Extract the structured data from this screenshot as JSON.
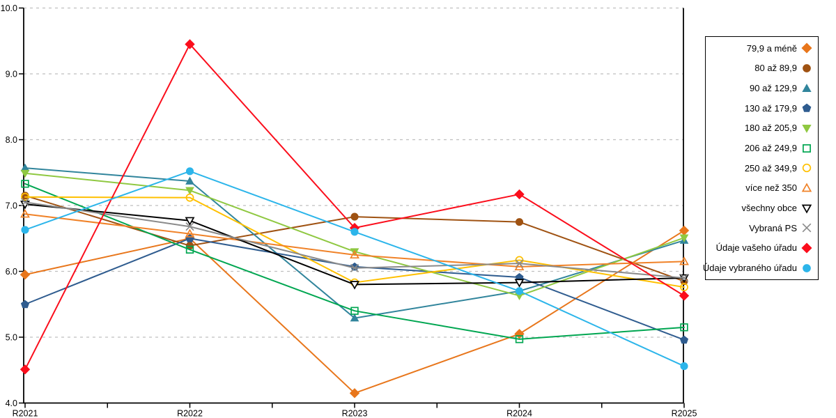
{
  "chart_data": {
    "type": "line",
    "title": "",
    "xlabel": "",
    "ylabel": "",
    "x_categories": [
      "R2021",
      "R2022",
      "R2023",
      "R2024",
      "R2025"
    ],
    "ylim": [
      4.0,
      10.0
    ],
    "y_tick_step": 1.0,
    "y_tick_labels": [
      "4.0",
      "5.0",
      "6.0",
      "7.0",
      "8.0",
      "9.0",
      "10.0"
    ],
    "grid": "horizontal-dashed",
    "legend_position": "right-outside",
    "colors": {
      "axis": "#000000",
      "gridline": "#bfbfbf",
      "background": "#ffffff"
    },
    "series": [
      {
        "name": "79,9 a méně",
        "color": "#e8761b",
        "marker": "diamond",
        "open": false,
        "values": [
          5.95,
          6.5,
          4.15,
          5.05,
          6.62
        ]
      },
      {
        "name": "80 až 89,9",
        "color": "#9f5212",
        "marker": "circle",
        "open": false,
        "values": [
          7.15,
          6.39,
          6.83,
          6.75,
          5.85
        ]
      },
      {
        "name": "90 až 129,9",
        "color": "#31859c",
        "marker": "triangle-up",
        "open": false,
        "values": [
          7.57,
          7.37,
          5.29,
          5.7,
          6.47
        ]
      },
      {
        "name": "130 až 179,9",
        "color": "#2f5c8f",
        "marker": "pentagon",
        "open": false,
        "values": [
          5.5,
          6.5,
          6.07,
          5.91,
          4.96
        ]
      },
      {
        "name": "180 až 205,9",
        "color": "#8fc841",
        "marker": "triangle-down",
        "open": false,
        "values": [
          7.49,
          7.23,
          6.3,
          5.63,
          6.51
        ]
      },
      {
        "name": "206 až 249,9",
        "color": "#00a651",
        "marker": "square",
        "open": true,
        "values": [
          7.33,
          6.33,
          5.4,
          4.97,
          5.15
        ]
      },
      {
        "name": "250 až 349,9",
        "color": "#ffc000",
        "marker": "circle",
        "open": true,
        "values": [
          7.13,
          7.12,
          5.83,
          6.17,
          5.76
        ]
      },
      {
        "name": "více než 350",
        "color": "#f08228",
        "marker": "triangle-up",
        "open": true,
        "values": [
          6.87,
          6.57,
          6.25,
          6.07,
          6.15
        ]
      },
      {
        "name": "všechny obce",
        "color": "#000000",
        "marker": "triangle-down",
        "open": true,
        "values": [
          7.02,
          6.77,
          5.8,
          5.83,
          5.9
        ]
      },
      {
        "name": "Vybraná PS",
        "color": "#8a8a8a",
        "marker": "x",
        "open": true,
        "values": [
          7.05,
          6.68,
          6.05,
          6.12,
          5.9
        ]
      },
      {
        "name": "Údaje vašeho úřadu",
        "color": "#fb0e1c",
        "marker": "diamond",
        "open": false,
        "values": [
          4.51,
          9.45,
          6.66,
          7.17,
          5.63
        ]
      },
      {
        "name": "Údaje vybraného úřadu",
        "color": "#2cb5ea",
        "marker": "circle",
        "open": false,
        "values": [
          6.63,
          7.52,
          6.6,
          5.7,
          4.56
        ]
      }
    ]
  }
}
